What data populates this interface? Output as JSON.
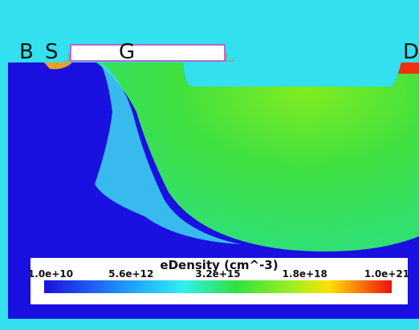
{
  "device": {
    "labels": {
      "body": "B",
      "source": "S",
      "gate": "G",
      "drain": "D"
    }
  },
  "colorbar": {
    "title": "eDensity (cm^-3)",
    "ticks": [
      "1.0e+10",
      "5.6e+12",
      "3.2e+15",
      "1.8e+18",
      "1.0e+21"
    ]
  }
}
